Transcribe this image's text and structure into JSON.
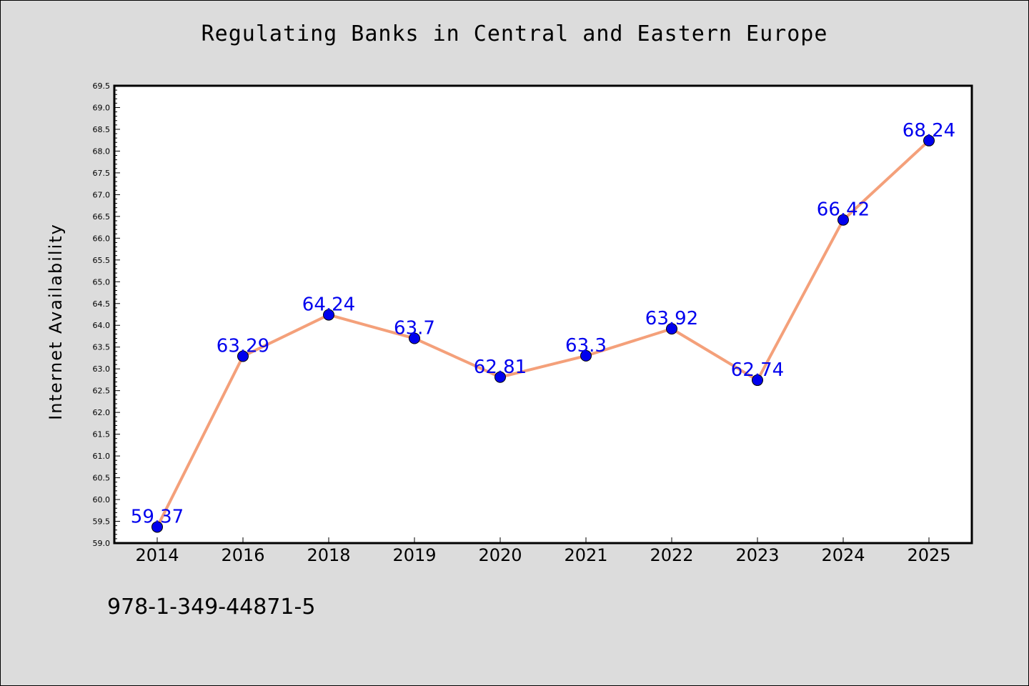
{
  "page": {
    "footer_code": "978-1-349-44871-5"
  },
  "colors": {
    "background": "#dcdcdc",
    "plot_background": "#ffffff",
    "line": "#f4a07a",
    "marker": "#0000ee",
    "label": "#0000ee"
  },
  "chart_data": {
    "type": "line",
    "title": "Regulating Banks in Central and Eastern Europe",
    "xlabel": "",
    "ylabel": "Internet Availability",
    "categories": [
      "2014",
      "2016",
      "2018",
      "2019",
      "2020",
      "2021",
      "2022",
      "2023",
      "2024",
      "2025"
    ],
    "series": [
      {
        "values": [
          59.37,
          63.29,
          64.24,
          63.7,
          62.81,
          63.3,
          63.92,
          62.74,
          66.42,
          68.24
        ],
        "data_labels": [
          "59.37",
          "63.29",
          "64.24",
          "63.7",
          "62.81",
          "63.3",
          "63.92",
          "62.74",
          "66.42",
          "68.24"
        ]
      }
    ],
    "ylim": [
      59.0,
      69.5
    ],
    "yticks": [
      "59.0",
      "59.5",
      "60.0",
      "60.5",
      "61.0",
      "61.5",
      "62.0",
      "62.5",
      "63.0",
      "63.5",
      "64.0",
      "64.5",
      "65.0",
      "65.5",
      "66.0",
      "66.5",
      "67.0",
      "67.5",
      "68.0",
      "68.5",
      "69.0",
      "69.5"
    ],
    "grid": false,
    "legend": "none"
  }
}
